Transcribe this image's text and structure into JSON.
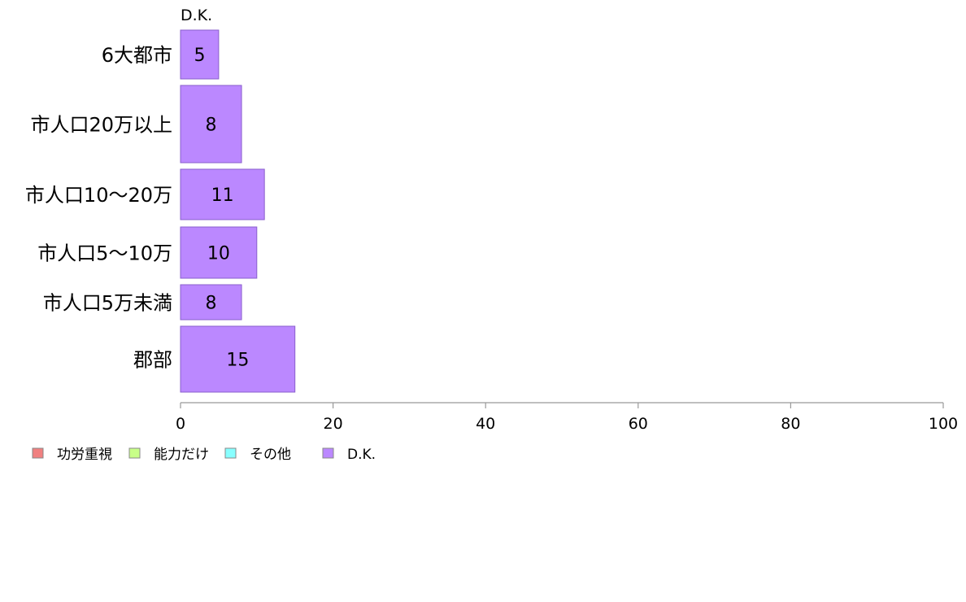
{
  "chart_data": {
    "type": "bar",
    "orientation": "horizontal",
    "series_label": "D.K.",
    "categories": [
      "6大都市",
      "市人口20万以上",
      "市人口10〜20万",
      "市人口5〜10万",
      "市人口5万未満",
      "郡部"
    ],
    "series": [
      {
        "name": "D.K.",
        "values": [
          5,
          8,
          11,
          10,
          8,
          15
        ],
        "color": "#bb88ff"
      }
    ],
    "xlim": [
      0,
      100
    ],
    "xticks": [
      0,
      20,
      40,
      60,
      80,
      100
    ],
    "grid": false,
    "legend_position": "bottom-left",
    "legend": [
      {
        "label": "功労重視",
        "color": "#f08080"
      },
      {
        "label": "能力だけ",
        "color": "#c8ff88"
      },
      {
        "label": "その他",
        "color": "#88ffff"
      },
      {
        "label": "D.K.",
        "color": "#bb88ff"
      }
    ]
  }
}
